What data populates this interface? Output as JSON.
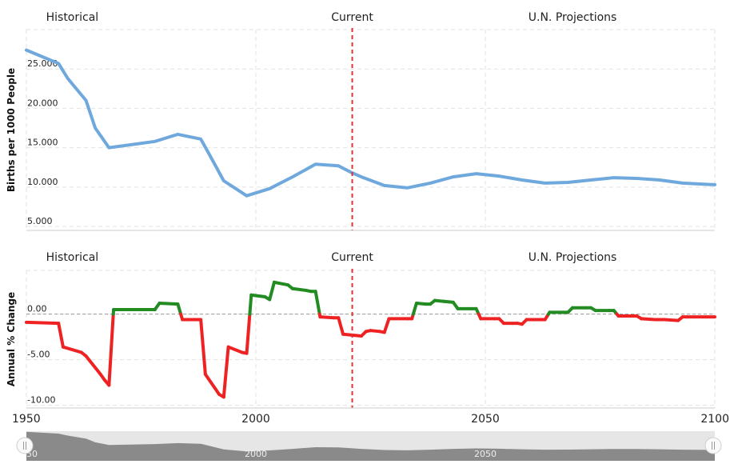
{
  "chart_data": [
    {
      "type": "line",
      "ylabel": "Births per 1000 People",
      "yticks": [
        "5.000",
        "10.000",
        "15.000",
        "20.000",
        "25.000"
      ],
      "ylim": [
        4.5,
        30
      ],
      "xlim": [
        1950,
        2100
      ],
      "bands": [
        "Historical",
        "Current",
        "U.N. Projections"
      ],
      "current_year": 2021,
      "color": "#6fa8dc",
      "grid": true,
      "series": [
        {
          "x": [
            1950,
            1957,
            1959,
            1963,
            1965,
            1968,
            1978,
            1983,
            1988,
            1990,
            1993,
            1998,
            2003,
            2008,
            2013,
            2018,
            2021,
            2023,
            2028,
            2033,
            2038,
            2043,
            2048,
            2053,
            2058,
            2063,
            2068,
            2073,
            2078,
            2083,
            2088,
            2093,
            2100
          ],
          "values": [
            27.4,
            25.7,
            23.8,
            21.0,
            17.5,
            15.0,
            15.8,
            16.7,
            16.1,
            14.0,
            10.8,
            8.9,
            9.8,
            11.3,
            12.9,
            12.7,
            11.8,
            11.3,
            10.2,
            9.9,
            10.5,
            11.3,
            11.7,
            11.4,
            10.9,
            10.5,
            10.6,
            10.9,
            11.2,
            11.1,
            10.9,
            10.5,
            10.3
          ]
        }
      ]
    },
    {
      "type": "line",
      "ylabel": "Annual % Change",
      "yticks": [
        "-10.00",
        "-5.00",
        "0.00"
      ],
      "ylim": [
        -10.3,
        4.8
      ],
      "xlim": [
        1950,
        2100
      ],
      "bands": [
        "Historical",
        "Current",
        "U.N. Projections"
      ],
      "current_year": 2021,
      "positive_color": "#228b22",
      "negative_color": "#ee2222",
      "grid": true,
      "series": [
        {
          "x": [
            1950,
            1957,
            1958,
            1962,
            1963,
            1966,
            1967,
            1968,
            1969,
            1973,
            1978,
            1979,
            1983,
            1984,
            1988,
            1989,
            1992,
            1993,
            1994,
            1997,
            1998,
            1999,
            2002,
            2003,
            2004,
            2007,
            2008,
            2011,
            2012,
            2013,
            2014,
            2017,
            2018,
            2019,
            2023,
            2024,
            2025,
            2027,
            2028,
            2029,
            2033,
            2034,
            2035,
            2037,
            2038,
            2039,
            2041,
            2043,
            2044,
            2047,
            2048,
            2049,
            2052,
            2053,
            2054,
            2057,
            2058,
            2059,
            2062,
            2063,
            2064,
            2067,
            2068,
            2069,
            2072,
            2073,
            2074,
            2077,
            2078,
            2079,
            2082,
            2083,
            2084,
            2087,
            2088,
            2089,
            2092,
            2093,
            2094,
            2100
          ],
          "values": [
            -0.9,
            -1.0,
            -3.6,
            -4.2,
            -4.6,
            -6.5,
            -7.2,
            -7.8,
            0.5,
            0.5,
            0.5,
            1.2,
            1.1,
            -0.6,
            -0.6,
            -6.6,
            -8.8,
            -9.1,
            -3.6,
            -4.2,
            -4.3,
            2.1,
            1.9,
            1.6,
            3.5,
            3.2,
            2.8,
            2.6,
            2.5,
            2.5,
            -0.3,
            -0.4,
            -0.4,
            -2.2,
            -2.4,
            -1.9,
            -1.8,
            -1.9,
            -2.0,
            -0.5,
            -0.5,
            -0.5,
            1.2,
            1.1,
            1.1,
            1.5,
            1.4,
            1.3,
            0.6,
            0.6,
            0.6,
            -0.5,
            -0.5,
            -0.5,
            -1.0,
            -1.0,
            -1.1,
            -0.6,
            -0.6,
            -0.6,
            0.2,
            0.2,
            0.2,
            0.7,
            0.7,
            0.7,
            0.4,
            0.4,
            0.4,
            -0.2,
            -0.2,
            -0.2,
            -0.5,
            -0.6,
            -0.6,
            -0.6,
            -0.7,
            -0.3,
            -0.3,
            -0.3
          ]
        }
      ]
    }
  ],
  "x_axis": {
    "ticks": [
      1950,
      2000,
      2050,
      2100
    ]
  },
  "navigator": {
    "ticks": [
      {
        "label": "50",
        "year": 1950
      },
      {
        "label": "2000",
        "year": 2000
      },
      {
        "label": "2050",
        "year": 2050
      }
    ],
    "fill_color": "#8a8a8a",
    "background": "#e6e6e6"
  }
}
